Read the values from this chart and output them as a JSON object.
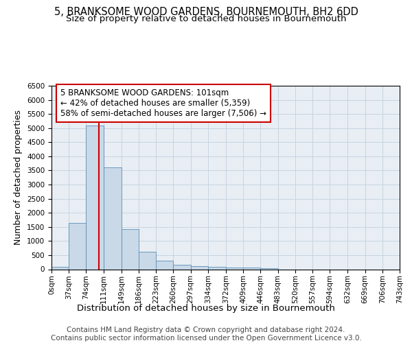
{
  "title": "5, BRANKSOME WOOD GARDENS, BOURNEMOUTH, BH2 6DD",
  "subtitle": "Size of property relative to detached houses in Bournemouth",
  "xlabel": "Distribution of detached houses by size in Bournemouth",
  "ylabel": "Number of detached properties",
  "footer_line1": "Contains HM Land Registry data © Crown copyright and database right 2024.",
  "footer_line2": "Contains public sector information licensed under the Open Government Licence v3.0.",
  "bar_edges": [
    0,
    37,
    74,
    111,
    149,
    186,
    223,
    260,
    297,
    334,
    372,
    409,
    446,
    483,
    520,
    557,
    594,
    632,
    669,
    706,
    743
  ],
  "bar_heights": [
    75,
    1650,
    5080,
    3600,
    1420,
    620,
    300,
    155,
    110,
    75,
    60,
    55,
    40,
    0,
    0,
    0,
    0,
    0,
    0,
    0
  ],
  "bar_color": "#c9d9e8",
  "bar_edgecolor": "#5a8db5",
  "property_size": 101,
  "vline_color": "#cc0000",
  "annotation_line1": "5 BRANKSOME WOOD GARDENS: 101sqm",
  "annotation_line2": "← 42% of detached houses are smaller (5,359)",
  "annotation_line3": "58% of semi-detached houses are larger (7,506) →",
  "annotation_box_edgecolor": "#cc0000",
  "ylim": [
    0,
    6500
  ],
  "yticks": [
    0,
    500,
    1000,
    1500,
    2000,
    2500,
    3000,
    3500,
    4000,
    4500,
    5000,
    5500,
    6000,
    6500
  ],
  "grid_color": "#c8d4e0",
  "background_color": "#e8eef4",
  "title_fontsize": 10.5,
  "subtitle_fontsize": 9.5,
  "ylabel_fontsize": 9,
  "xlabel_fontsize": 9.5,
  "tick_fontsize": 7.5,
  "annotation_fontsize": 8.5,
  "footer_fontsize": 7.5
}
